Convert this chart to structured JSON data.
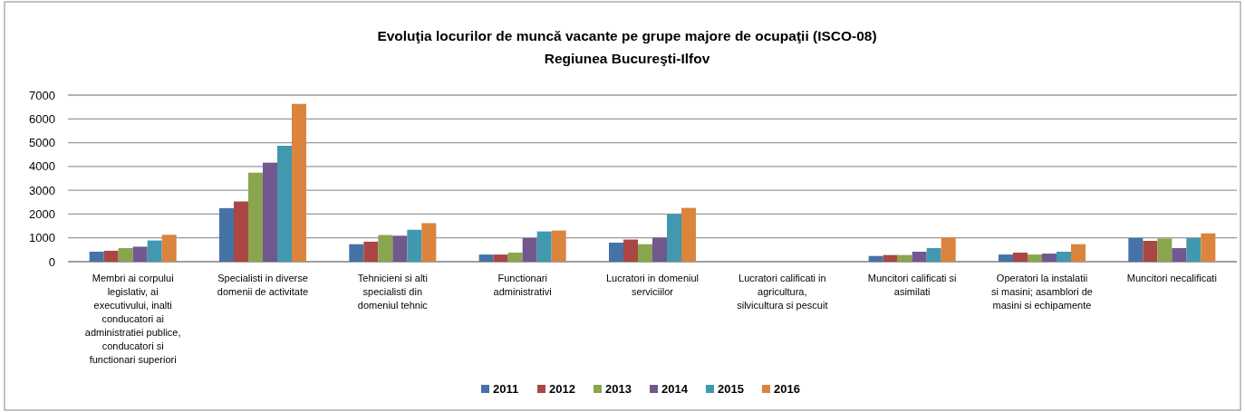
{
  "chart_data": {
    "type": "bar",
    "title": "Evoluţia locurilor de muncă vacante pe grupe majore de ocupaţii (ISCO-08)",
    "subtitle": "Regiunea Bucureşti-Ilfov",
    "categories": [
      "Membri ai corpului legislativ, ai executivului, inalti conducatori ai administratiei publice, conducatori si functionari superiori",
      "Specialisti in diverse domenii de activitate",
      "Tehnicieni si alti specialisti din domeniul tehnic",
      "Functionari administrativi",
      "Lucratori in domeniul serviciilor",
      "Lucratori calificati in agricultura, silvicultura si pescuit",
      "Muncitori calificati si asimilati",
      "Operatori la instalatii si masini; asamblori de masini si echipamente",
      "Muncitori necalificati"
    ],
    "series": [
      {
        "name": "2011",
        "color": "#4572a7",
        "values": [
          420,
          2250,
          735,
          300,
          800,
          0,
          240,
          300,
          990
        ]
      },
      {
        "name": "2012",
        "color": "#aa4643",
        "values": [
          460,
          2530,
          840,
          300,
          930,
          0,
          280,
          380,
          875
        ]
      },
      {
        "name": "2013",
        "color": "#89a54e",
        "values": [
          570,
          3740,
          1120,
          380,
          735,
          0,
          280,
          300,
          975
        ]
      },
      {
        "name": "2014",
        "color": "#71588f",
        "values": [
          630,
          4160,
          1090,
          990,
          1010,
          0,
          420,
          340,
          570
        ]
      },
      {
        "name": "2015",
        "color": "#4198af",
        "values": [
          890,
          4870,
          1340,
          1270,
          2000,
          0,
          570,
          420,
          990
        ]
      },
      {
        "name": "2016",
        "color": "#db843d",
        "values": [
          1130,
          6630,
          1620,
          1310,
          2260,
          0,
          1010,
          735,
          1190
        ]
      }
    ],
    "ylim": [
      0,
      7000
    ],
    "yticks": [
      0,
      1000,
      2000,
      3000,
      4000,
      5000,
      6000,
      7000
    ],
    "grid": "y",
    "legend": "bottom"
  }
}
